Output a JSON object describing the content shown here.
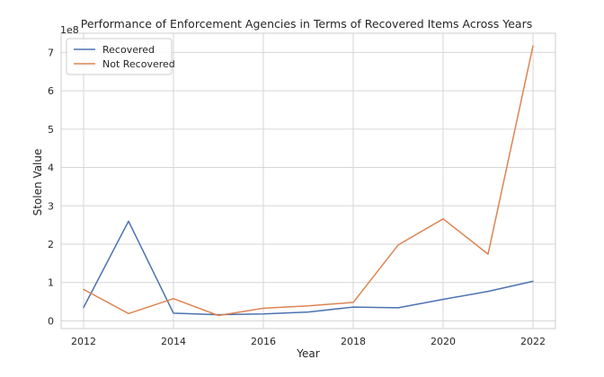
{
  "chart_data": {
    "type": "line",
    "title": "Performance of Enforcement Agencies in Terms of Recovered Items Across Years",
    "xlabel": "Year",
    "ylabel": "Stolen Value",
    "y_offset_label": "1e8",
    "x": [
      2012,
      2013,
      2014,
      2015,
      2016,
      2017,
      2018,
      2019,
      2020,
      2021,
      2022
    ],
    "x_ticks": [
      2012,
      2014,
      2016,
      2018,
      2020,
      2022
    ],
    "x_tick_labels": [
      "2012",
      "2014",
      "2016",
      "2018",
      "2020",
      "2022"
    ],
    "xlim": [
      2011.5,
      2022.5
    ],
    "y_ticks": [
      0,
      100000000,
      200000000,
      300000000,
      400000000,
      500000000,
      600000000,
      700000000
    ],
    "y_tick_labels": [
      "0",
      "1",
      "2",
      "3",
      "4",
      "5",
      "6",
      "7"
    ],
    "ylim": [
      -20000000,
      750000000
    ],
    "grid": true,
    "legend_position": "top-left",
    "series": [
      {
        "name": "Recovered",
        "color": "#4c72b0",
        "values": [
          35000000,
          260000000,
          20000000,
          16000000,
          18000000,
          23000000,
          36000000,
          34000000,
          56000000,
          77000000,
          103000000
        ]
      },
      {
        "name": "Not Recovered",
        "color": "#dd8452",
        "values": [
          82000000,
          19000000,
          58000000,
          14000000,
          33000000,
          39000000,
          48000000,
          198000000,
          266000000,
          174000000,
          717000000
        ]
      }
    ]
  }
}
